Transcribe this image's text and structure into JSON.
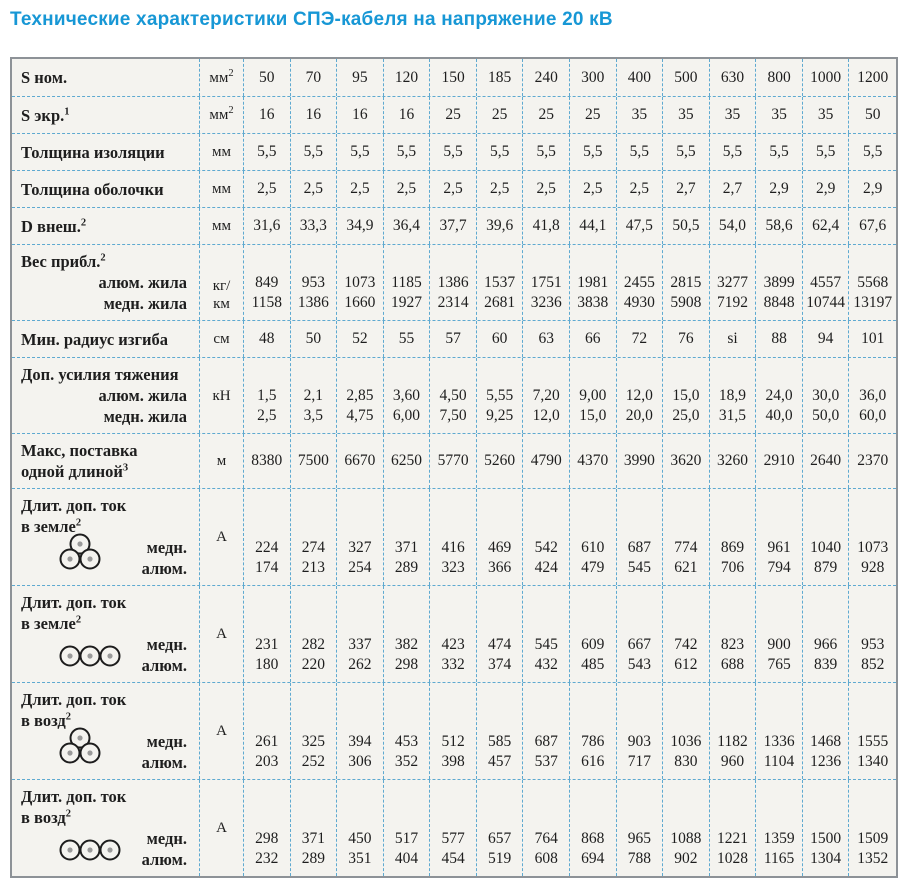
{
  "title": "Технические характеристики СПЭ-кабеля на напряжение 20 кВ",
  "table": {
    "rows": [
      {
        "label_lines": [
          {
            "text": "S ном.",
            "sup": ""
          }
        ],
        "sub_labels": [],
        "icon": "",
        "unit": {
          "lines": [
            "мм"
          ],
          "sup": "2"
        },
        "values": [
          "50",
          "70",
          "95",
          "120",
          "150",
          "185",
          "240",
          "300",
          "400",
          "500",
          "630",
          "800",
          "1000",
          "1200"
        ]
      },
      {
        "label_lines": [
          {
            "text": "S экр.",
            "sup": "1"
          }
        ],
        "sub_labels": [],
        "icon": "",
        "unit": {
          "lines": [
            "мм"
          ],
          "sup": "2"
        },
        "values": [
          "16",
          "16",
          "16",
          "16",
          "25",
          "25",
          "25",
          "25",
          "35",
          "35",
          "35",
          "35",
          "35",
          "50"
        ]
      },
      {
        "label_lines": [
          {
            "text": "Толщина изоляции",
            "sup": ""
          }
        ],
        "sub_labels": [],
        "icon": "",
        "unit": {
          "lines": [
            "мм"
          ],
          "sup": ""
        },
        "values": [
          "5,5",
          "5,5",
          "5,5",
          "5,5",
          "5,5",
          "5,5",
          "5,5",
          "5,5",
          "5,5",
          "5,5",
          "5,5",
          "5,5",
          "5,5",
          "5,5"
        ]
      },
      {
        "label_lines": [
          {
            "text": "Толщина оболочки",
            "sup": ""
          }
        ],
        "sub_labels": [],
        "icon": "",
        "unit": {
          "lines": [
            "мм"
          ],
          "sup": ""
        },
        "values": [
          "2,5",
          "2,5",
          "2,5",
          "2,5",
          "2,5",
          "2,5",
          "2,5",
          "2,5",
          "2,5",
          "2,7",
          "2,7",
          "2,9",
          "2,9",
          "2,9"
        ]
      },
      {
        "label_lines": [
          {
            "text": "D внеш.",
            "sup": "2"
          }
        ],
        "sub_labels": [],
        "icon": "",
        "unit": {
          "lines": [
            "мм"
          ],
          "sup": ""
        },
        "values": [
          "31,6",
          "33,3",
          "34,9",
          "36,4",
          "37,7",
          "39,6",
          "41,8",
          "44,1",
          "47,5",
          "50,5",
          "54,0",
          "58,6",
          "62,4",
          "67,6"
        ]
      },
      {
        "label_lines": [
          {
            "text": "Вес прибл.",
            "sup": "2"
          }
        ],
        "sub_labels": [
          "алюм. жила",
          "медн. жила"
        ],
        "icon": "",
        "unit": {
          "lines": [
            "кг/",
            "км"
          ],
          "sup": ""
        },
        "values": [
          [
            "849",
            "1158"
          ],
          [
            "953",
            "1386"
          ],
          [
            "1073",
            "1660"
          ],
          [
            "1185",
            "1927"
          ],
          [
            "1386",
            "2314"
          ],
          [
            "1537",
            "2681"
          ],
          [
            "1751",
            "3236"
          ],
          [
            "1981",
            "3838"
          ],
          [
            "2455",
            "4930"
          ],
          [
            "2815",
            "5908"
          ],
          [
            "3277",
            "7192"
          ],
          [
            "3899",
            "8848"
          ],
          [
            "4557",
            "10744"
          ],
          [
            "5568",
            "13197"
          ]
        ]
      },
      {
        "label_lines": [
          {
            "text": "Мин. радиус изгиба",
            "sup": ""
          }
        ],
        "sub_labels": [],
        "icon": "",
        "unit": {
          "lines": [
            "см"
          ],
          "sup": ""
        },
        "values": [
          "48",
          "50",
          "52",
          "55",
          "57",
          "60",
          "63",
          "66",
          "72",
          "76",
          "si",
          "88",
          "94",
          "101"
        ]
      },
      {
        "label_lines": [
          {
            "text": "Доп. усилия тяжения",
            "sup": ""
          }
        ],
        "sub_labels": [
          "алюм. жила",
          "медн. жила"
        ],
        "icon": "",
        "unit": {
          "lines": [
            "кН"
          ],
          "sup": ""
        },
        "values": [
          [
            "1,5",
            "2,5"
          ],
          [
            "2,1",
            "3,5"
          ],
          [
            "2,85",
            "4,75"
          ],
          [
            "3,60",
            "6,00"
          ],
          [
            "4,50",
            "7,50"
          ],
          [
            "5,55",
            "9,25"
          ],
          [
            "7,20",
            "12,0"
          ],
          [
            "9,00",
            "15,0"
          ],
          [
            "12,0",
            "20,0"
          ],
          [
            "15,0",
            "25,0"
          ],
          [
            "18,9",
            "31,5"
          ],
          [
            "24,0",
            "40,0"
          ],
          [
            "30,0",
            "50,0"
          ],
          [
            "36,0",
            "60,0"
          ]
        ]
      },
      {
        "label_lines": [
          {
            "text": "Макс, поставка",
            "sup": ""
          },
          {
            "text": "одной длиной",
            "sup": "3"
          }
        ],
        "sub_labels": [],
        "icon": "",
        "unit": {
          "lines": [
            "м"
          ],
          "sup": ""
        },
        "values": [
          "8380",
          "7500",
          "6670",
          "6250",
          "5770",
          "5260",
          "4790",
          "4370",
          "3990",
          "3620",
          "3260",
          "2910",
          "2640",
          "2370"
        ]
      },
      {
        "label_lines": [
          {
            "text": "Длит. доп. ток",
            "sup": ""
          },
          {
            "text": "в земле",
            "sup": "2"
          }
        ],
        "sub_labels": [
          "медн.",
          "алюм."
        ],
        "icon": "trefoil",
        "unit": {
          "lines": [
            "А"
          ],
          "sup": ""
        },
        "values": [
          [
            "224",
            "174"
          ],
          [
            "274",
            "213"
          ],
          [
            "327",
            "254"
          ],
          [
            "371",
            "289"
          ],
          [
            "416",
            "323"
          ],
          [
            "469",
            "366"
          ],
          [
            "542",
            "424"
          ],
          [
            "610",
            "479"
          ],
          [
            "687",
            "545"
          ],
          [
            "774",
            "621"
          ],
          [
            "869",
            "706"
          ],
          [
            "961",
            "794"
          ],
          [
            "1040",
            "879"
          ],
          [
            "1073",
            "928"
          ]
        ]
      },
      {
        "label_lines": [
          {
            "text": "Длит. доп. ток",
            "sup": ""
          },
          {
            "text": "в земле",
            "sup": "2"
          }
        ],
        "sub_labels": [
          "медн.",
          "алюм."
        ],
        "icon": "flat",
        "unit": {
          "lines": [
            "А"
          ],
          "sup": ""
        },
        "values": [
          [
            "231",
            "180"
          ],
          [
            "282",
            "220"
          ],
          [
            "337",
            "262"
          ],
          [
            "382",
            "298"
          ],
          [
            "423",
            "332"
          ],
          [
            "474",
            "374"
          ],
          [
            "545",
            "432"
          ],
          [
            "609",
            "485"
          ],
          [
            "667",
            "543"
          ],
          [
            "742",
            "612"
          ],
          [
            "823",
            "688"
          ],
          [
            "900",
            "765"
          ],
          [
            "966",
            "839"
          ],
          [
            "953",
            "852"
          ]
        ]
      },
      {
        "label_lines": [
          {
            "text": "Длит. доп. ток",
            "sup": ""
          },
          {
            "text": "в возд",
            "sup": "2"
          }
        ],
        "sub_labels": [
          "медн.",
          "алюм."
        ],
        "icon": "trefoil",
        "unit": {
          "lines": [
            "А"
          ],
          "sup": ""
        },
        "values": [
          [
            "261",
            "203"
          ],
          [
            "325",
            "252"
          ],
          [
            "394",
            "306"
          ],
          [
            "453",
            "352"
          ],
          [
            "512",
            "398"
          ],
          [
            "585",
            "457"
          ],
          [
            "687",
            "537"
          ],
          [
            "786",
            "616"
          ],
          [
            "903",
            "717"
          ],
          [
            "1036",
            "830"
          ],
          [
            "1182",
            "960"
          ],
          [
            "1336",
            "1104"
          ],
          [
            "1468",
            "1236"
          ],
          [
            "1555",
            "1340"
          ]
        ]
      },
      {
        "label_lines": [
          {
            "text": "Длит. доп. ток",
            "sup": ""
          },
          {
            "text": "в возд",
            "sup": "2"
          }
        ],
        "sub_labels": [
          "медн.",
          "алюм."
        ],
        "icon": "flat",
        "unit": {
          "lines": [
            "А"
          ],
          "sup": ""
        },
        "values": [
          [
            "298",
            "232"
          ],
          [
            "371",
            "289"
          ],
          [
            "450",
            "351"
          ],
          [
            "517",
            "404"
          ],
          [
            "577",
            "454"
          ],
          [
            "657",
            "519"
          ],
          [
            "764",
            "608"
          ],
          [
            "868",
            "694"
          ],
          [
            "965",
            "788"
          ],
          [
            "1088",
            "902"
          ],
          [
            "1221",
            "1028"
          ],
          [
            "1359",
            "1165"
          ],
          [
            "1500",
            "1304"
          ],
          [
            "1509",
            "1352"
          ]
        ]
      }
    ]
  },
  "colors": {
    "title": "#1797d5",
    "dashed_border": "#5ea9d0",
    "outer_border": "#8d9297",
    "cell_background": "#f4f3ef"
  },
  "icons": {
    "trefoil": "trefoil-arrangement-icon",
    "flat": "flat-arrangement-icon"
  }
}
